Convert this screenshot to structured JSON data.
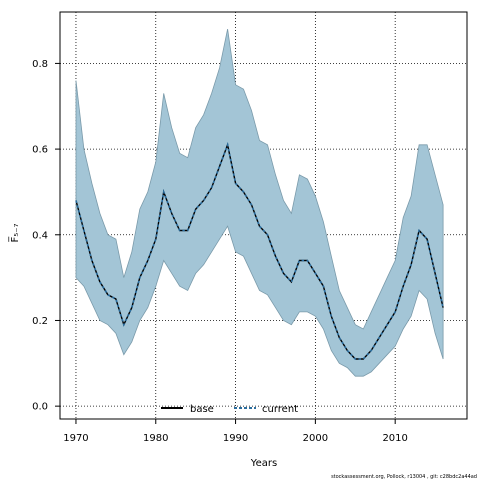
{
  "chart_data": {
    "type": "line",
    "xlabel": "Years",
    "ylabel": "F̅₅₋₇",
    "xlim": [
      1968,
      2019
    ],
    "ylim": [
      -0.03,
      0.92
    ],
    "xticks": [
      1970,
      1980,
      1990,
      2000,
      2010
    ],
    "yticks": [
      "0.0",
      "0.2",
      "0.4",
      "0.6",
      "0.8"
    ],
    "ytick_values": [
      0.0,
      0.2,
      0.4,
      0.6,
      0.8
    ],
    "grid": true,
    "legend_placement": "bottom-center",
    "x": [
      1970,
      1971,
      1972,
      1973,
      1974,
      1975,
      1976,
      1977,
      1978,
      1979,
      1980,
      1981,
      1982,
      1983,
      1984,
      1985,
      1986,
      1987,
      1988,
      1989,
      1990,
      1991,
      1992,
      1993,
      1994,
      1995,
      1996,
      1997,
      1998,
      1999,
      2000,
      2001,
      2002,
      2003,
      2004,
      2005,
      2006,
      2007,
      2008,
      2009,
      2010,
      2011,
      2012,
      2013,
      2014,
      2015,
      2016
    ],
    "band": {
      "upper": [
        0.76,
        0.6,
        0.52,
        0.45,
        0.4,
        0.39,
        0.3,
        0.36,
        0.46,
        0.5,
        0.57,
        0.73,
        0.65,
        0.59,
        0.58,
        0.65,
        0.68,
        0.73,
        0.79,
        0.88,
        0.75,
        0.74,
        0.69,
        0.62,
        0.61,
        0.54,
        0.48,
        0.45,
        0.54,
        0.53,
        0.49,
        0.43,
        0.35,
        0.27,
        0.23,
        0.19,
        0.18,
        0.22,
        0.26,
        0.3,
        0.34,
        0.44,
        0.49,
        0.61,
        0.61,
        0.54,
        0.47
      ],
      "lower": [
        0.3,
        0.28,
        0.24,
        0.2,
        0.19,
        0.17,
        0.12,
        0.15,
        0.2,
        0.23,
        0.28,
        0.34,
        0.31,
        0.28,
        0.27,
        0.31,
        0.33,
        0.36,
        0.39,
        0.42,
        0.36,
        0.35,
        0.31,
        0.27,
        0.26,
        0.23,
        0.2,
        0.19,
        0.22,
        0.22,
        0.21,
        0.18,
        0.13,
        0.1,
        0.09,
        0.07,
        0.07,
        0.08,
        0.1,
        0.12,
        0.14,
        0.18,
        0.21,
        0.27,
        0.25,
        0.17,
        0.11
      ],
      "color": "#a3c5d6"
    },
    "series": [
      {
        "name": "base",
        "color": "#000000",
        "style": "solid",
        "values": [
          0.48,
          0.41,
          0.34,
          0.29,
          0.26,
          0.25,
          0.19,
          0.23,
          0.3,
          0.34,
          0.39,
          0.5,
          0.45,
          0.41,
          0.41,
          0.46,
          0.48,
          0.51,
          0.56,
          0.61,
          0.52,
          0.5,
          0.47,
          0.42,
          0.4,
          0.35,
          0.31,
          0.29,
          0.34,
          0.34,
          0.31,
          0.28,
          0.21,
          0.16,
          0.13,
          0.11,
          0.11,
          0.13,
          0.16,
          0.19,
          0.22,
          0.28,
          0.33,
          0.41,
          0.39,
          0.31,
          0.23
        ]
      },
      {
        "name": "current",
        "color": "#2a6d9e",
        "style": "dashed",
        "values": [
          0.48,
          0.41,
          0.34,
          0.29,
          0.26,
          0.25,
          0.19,
          0.23,
          0.3,
          0.34,
          0.39,
          0.5,
          0.45,
          0.41,
          0.41,
          0.46,
          0.48,
          0.51,
          0.56,
          0.61,
          0.52,
          0.5,
          0.47,
          0.42,
          0.4,
          0.35,
          0.31,
          0.29,
          0.34,
          0.34,
          0.31,
          0.28,
          0.21,
          0.16,
          0.13,
          0.11,
          0.11,
          0.13,
          0.16,
          0.19,
          0.22,
          0.28,
          0.33,
          0.41,
          0.39,
          0.31,
          0.23
        ]
      }
    ]
  },
  "legend": {
    "base_label": "base",
    "current_label": "current"
  },
  "footer": {
    "text": "stockassessment.org, Pollock, r13004 , git: c28bdc2a44ad"
  }
}
